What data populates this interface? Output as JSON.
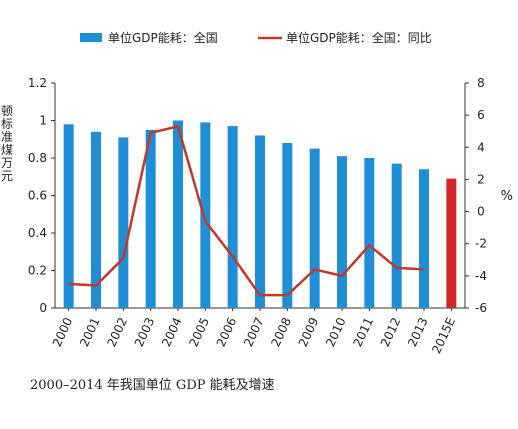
{
  "chart_data": {
    "type": "bar+line",
    "categories": [
      "2000",
      "2001",
      "2002",
      "2003",
      "2004",
      "2005",
      "2006",
      "2007",
      "2008",
      "2009",
      "2010",
      "2011",
      "2012",
      "2013",
      "2015E"
    ],
    "series": [
      {
        "name": "单位GDP能耗：全国",
        "type": "bar",
        "axis": "left",
        "values": [
          0.98,
          0.94,
          0.91,
          0.95,
          1.0,
          0.99,
          0.97,
          0.92,
          0.88,
          0.85,
          0.81,
          0.8,
          0.77,
          0.74,
          0.69
        ],
        "color": "#1e8fd6",
        "highlight": {
          "index": 14,
          "color": "#d62727"
        }
      },
      {
        "name": "单位GDP能耗：全国：同比",
        "type": "line",
        "axis": "right",
        "values": [
          -4.5,
          -4.6,
          -2.9,
          4.9,
          5.3,
          -0.6,
          -2.8,
          -5.2,
          -5.2,
          -3.6,
          -4.0,
          -2.1,
          -3.5,
          -3.6,
          null
        ],
        "color": "#c0392b"
      }
    ],
    "ylabel_left": "顿标准煤/万元",
    "ylabel_right": "%",
    "ylim_left": [
      0,
      1.2
    ],
    "ylim_right": [
      -6,
      8
    ],
    "yticks_left": [
      "0",
      "0.2",
      "0.4",
      "0.6",
      "0.8",
      "1",
      "1.2"
    ],
    "yticks_right": [
      "-6",
      "-4",
      "-2",
      "0",
      "2",
      "4",
      "6",
      "8"
    ],
    "legend_position": "top",
    "grid": false
  },
  "caption": "2000–2014 年我国单位 GDP 能耗及增速"
}
